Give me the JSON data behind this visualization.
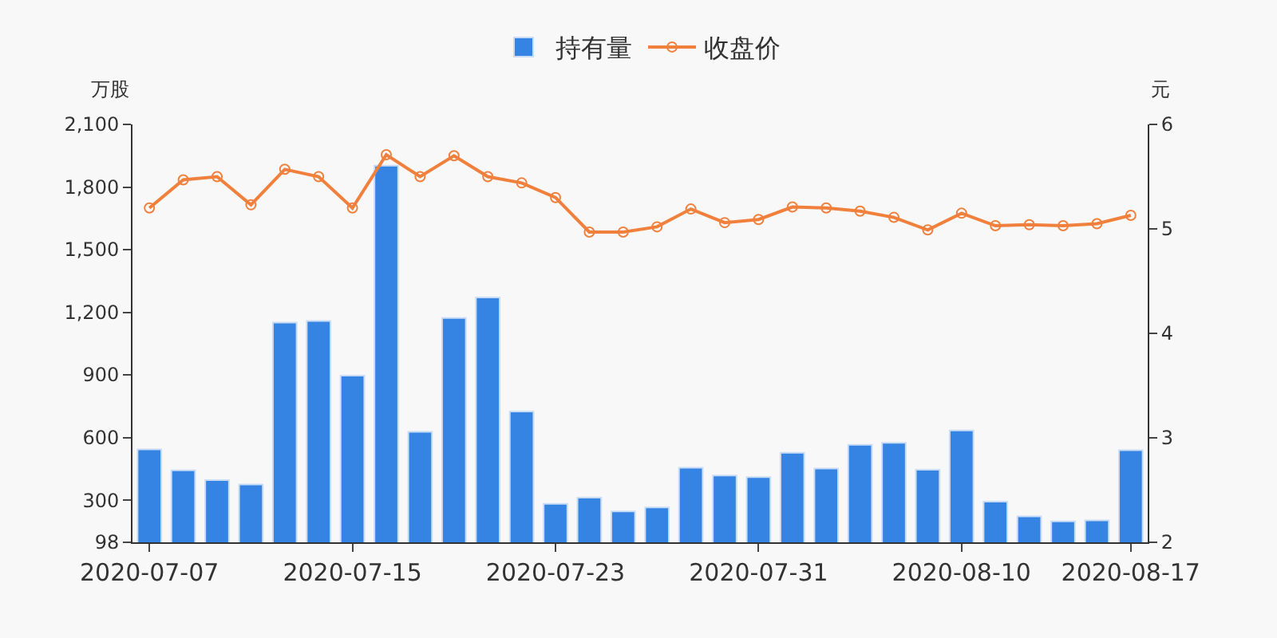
{
  "chart_data": {
    "type": "bar",
    "ylabel": "万股",
    "y2label": "元",
    "categories": [
      "2020-07-07",
      null,
      null,
      null,
      null,
      null,
      "2020-07-15",
      null,
      null,
      null,
      null,
      null,
      "2020-07-23",
      null,
      null,
      null,
      null,
      null,
      "2020-07-31",
      null,
      null,
      null,
      null,
      null,
      "2020-08-10",
      null,
      null,
      null,
      null,
      "2020-08-17"
    ],
    "series": [
      {
        "name": "持有量",
        "color": "#3584e4",
        "values": [
          543,
          443,
          396,
          375,
          1151,
          1158,
          897,
          1902,
          627,
          1173,
          1271,
          725,
          282,
          312,
          246,
          265,
          455,
          418,
          410,
          527,
          451,
          565,
          575,
          446,
          634,
          293,
          222,
          198,
          203,
          539
        ]
      },
      {
        "name": "收盘价",
        "type": "line",
        "axis": "y2",
        "color": "#f0803c",
        "marker": "circle",
        "values": [
          5.2,
          5.47,
          5.5,
          5.23,
          5.57,
          5.5,
          5.2,
          5.71,
          5.5,
          5.7,
          5.5,
          5.44,
          5.3,
          4.97,
          4.97,
          5.02,
          5.19,
          5.06,
          5.09,
          5.21,
          5.2,
          5.17,
          5.11,
          4.99,
          5.15,
          5.03,
          5.04,
          5.03,
          5.05,
          5.13
        ]
      }
    ],
    "ylim": [
      98,
      2100
    ],
    "yticks": [
      98,
      300,
      600,
      900,
      {
        "value": 1200,
        "label": "1,200"
      },
      {
        "value": 1500,
        "label": "1,500"
      },
      {
        "value": 1800,
        "label": "1,800"
      },
      {
        "value": 2100,
        "label": "2,100"
      }
    ],
    "y2lim": [
      2,
      6
    ],
    "y2ticks": [
      2,
      3,
      4,
      5,
      6
    ],
    "legend": "top",
    "grid": false
  }
}
